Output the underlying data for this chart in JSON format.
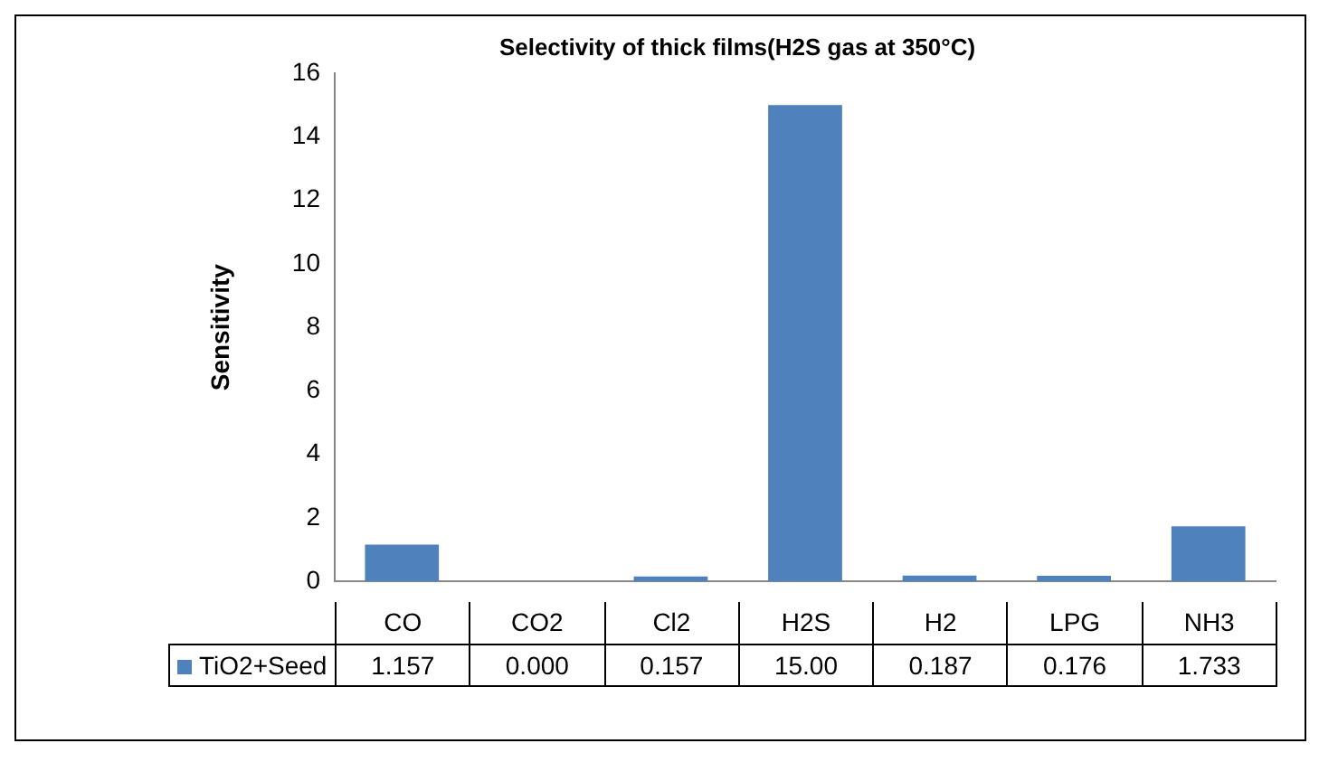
{
  "chart_data": {
    "type": "bar",
    "title": "Selectivity of thick films(H2S gas at 350°C)",
    "ylabel": "Sensitivity",
    "categories": [
      "CO",
      "CO2",
      "Cl2",
      "H2S",
      "H2",
      "LPG",
      "NH3"
    ],
    "series": [
      {
        "name": "TiO2+Seed",
        "color": "#4f81bd",
        "values": [
          1.157,
          0.0,
          0.157,
          15.0,
          0.187,
          0.176,
          1.733
        ],
        "value_labels": [
          "1.157",
          "0.000",
          "0.157",
          "15.00",
          "0.187",
          "0.176",
          "1.733"
        ]
      }
    ],
    "ylim": [
      0,
      16
    ],
    "yticks": [
      0,
      2,
      4,
      6,
      8,
      10,
      12,
      14,
      16
    ],
    "grid": false,
    "legend": "bottom"
  }
}
